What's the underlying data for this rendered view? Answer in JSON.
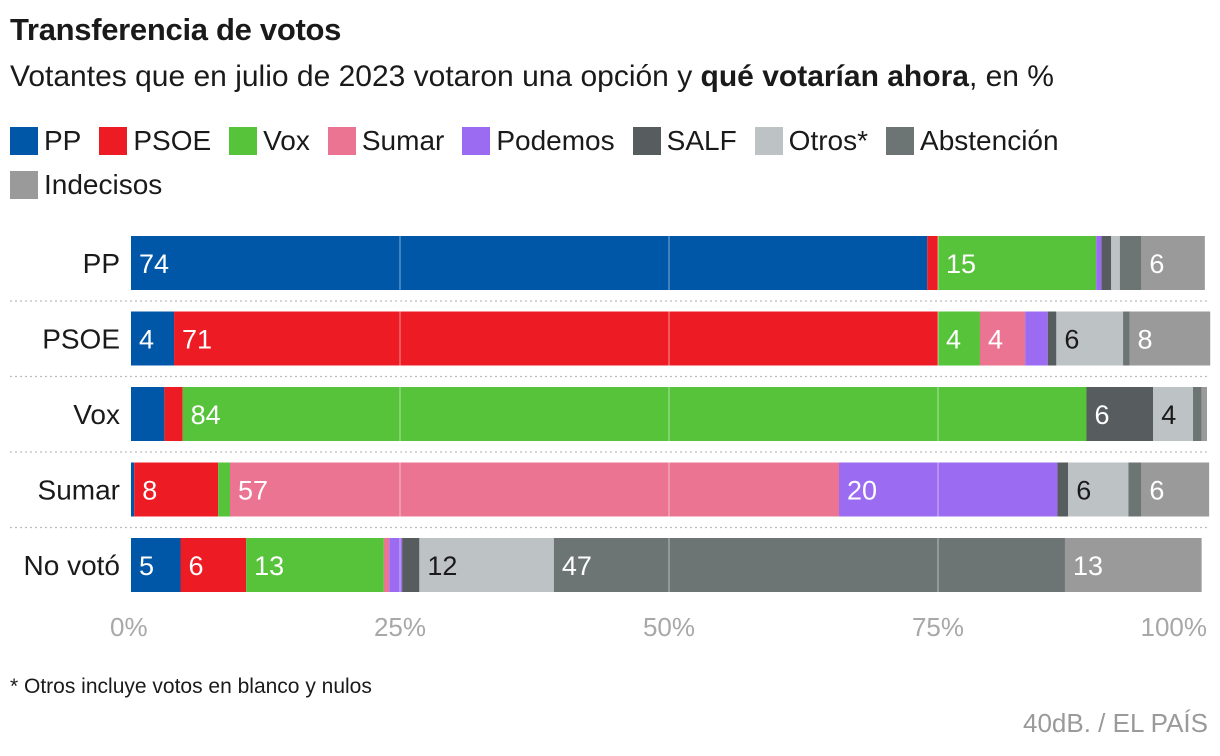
{
  "title": "Transferencia de votos",
  "subtitle": {
    "prefix": "Votantes que en julio de 2023 votaron una opción y ",
    "bold": "qué votarían ahora",
    "suffix": ", en %"
  },
  "footnote": "* Otros incluye votos en blanco y nulos",
  "source": "40dB. / EL PAÍS",
  "legend": [
    {
      "label": "PP",
      "color": "#0057a8"
    },
    {
      "label": "PSOE",
      "color": "#ed1c24"
    },
    {
      "label": "Vox",
      "color": "#56c33a"
    },
    {
      "label": "Sumar",
      "color": "#ec7493"
    },
    {
      "label": "Podemos",
      "color": "#9b6cf2"
    },
    {
      "label": "SALF",
      "color": "#575c5e"
    },
    {
      "label": "Otros*",
      "color": "#bdc2c5"
    },
    {
      "label": "Abstención",
      "color": "#6d7574"
    },
    {
      "label": "Indecisos",
      "color": "#9a9a9a"
    }
  ],
  "chart_data": {
    "type": "bar",
    "orientation": "horizontal",
    "stacked": true,
    "categories": [
      "PP",
      "PSOE",
      "Vox",
      "Sumar",
      "No votó"
    ],
    "xlim": [
      0,
      100
    ],
    "x_ticks": [
      "0%",
      "25%",
      "50%",
      "75%",
      "100%"
    ],
    "grid": true,
    "series": [
      {
        "name": "PP",
        "color": "#0057a8",
        "values": [
          74,
          4,
          3.1,
          0.3,
          4.6
        ],
        "labels": [
          "74",
          "4",
          "",
          "",
          "5"
        ]
      },
      {
        "name": "PSOE",
        "color": "#ed1c24",
        "values": [
          1,
          71,
          1.7,
          7.8,
          6.1
        ],
        "labels": [
          "",
          "71",
          "",
          "8",
          "6"
        ]
      },
      {
        "name": "Vox",
        "color": "#56c33a",
        "values": [
          14.7,
          3.9,
          84,
          1.1,
          12.8
        ],
        "labels": [
          "15",
          "4",
          "84",
          "",
          "13"
        ]
      },
      {
        "name": "Sumar",
        "color": "#ec7493",
        "values": [
          0,
          4.2,
          0,
          56.6,
          0.5
        ],
        "labels": [
          "",
          "4",
          "",
          "57",
          ""
        ]
      },
      {
        "name": "Podemos",
        "color": "#9b6cf2",
        "values": [
          0.5,
          2.1,
          0,
          20.3,
          1.2
        ],
        "labels": [
          "",
          "",
          "",
          "20",
          ""
        ]
      },
      {
        "name": "SALF",
        "color": "#575c5e",
        "values": [
          0.9,
          0.8,
          6.2,
          1,
          1.6
        ],
        "labels": [
          "",
          "",
          "6",
          "",
          ""
        ]
      },
      {
        "name": "Otros*",
        "color": "#bdc2c5",
        "values": [
          0.8,
          6.2,
          3.7,
          5.6,
          12.5
        ],
        "labels": [
          "",
          "6",
          "4",
          "6",
          "12"
        ]
      },
      {
        "name": "Abstención",
        "color": "#6d7574",
        "values": [
          2,
          0.6,
          0.8,
          1.2,
          47.5
        ],
        "labels": [
          "",
          "",
          "",
          "",
          "47"
        ]
      },
      {
        "name": "Indecisos",
        "color": "#9a9a9a",
        "values": [
          5.9,
          7.5,
          0.5,
          6.3,
          12.7
        ],
        "labels": [
          "6",
          "8",
          "",
          "6",
          "13"
        ]
      }
    ]
  }
}
